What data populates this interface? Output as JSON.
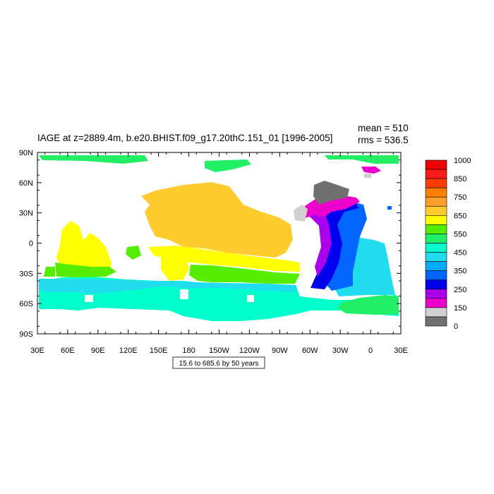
{
  "map": {
    "title": "IAGE at z=2889.4m, b.e20.BHIST.f09_g17.20thC.151_01 [1996-2005]",
    "mean_text": "mean = 510",
    "rms_text": "rms = 536.5",
    "lat_ticks": [
      "90N",
      "60N",
      "30N",
      "0",
      "30S",
      "60S",
      "90S"
    ],
    "lon_ticks": [
      "30E",
      "60E",
      "90E",
      "120E",
      "150E",
      "180",
      "150W",
      "120W",
      "90W",
      "60W",
      "30W",
      "0",
      "30E"
    ],
    "contour_info": "15.6 to 685.6 by 50 years"
  },
  "colorbar": {
    "labels": [
      "1000",
      "850",
      "750",
      "650",
      "550",
      "450",
      "350",
      "250",
      "150",
      "0"
    ],
    "colors": [
      "#ee0000",
      "#ff1a1a",
      "#ff3d00",
      "#ff7f00",
      "#ff9f2a",
      "#ffcc30",
      "#ffff00",
      "#55ee00",
      "#22ee66",
      "#00ffcc",
      "#22ddee",
      "#00aaff",
      "#0066ff",
      "#0000ee",
      "#aa00ee",
      "#ee00cc",
      "#d0d0d0",
      "#707070"
    ]
  }
}
